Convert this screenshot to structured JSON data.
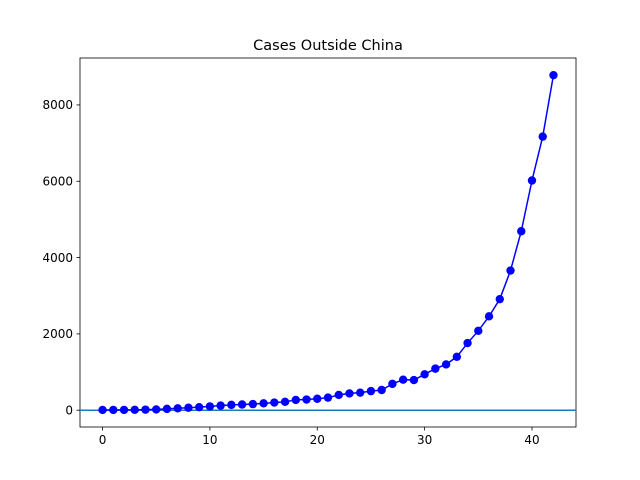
{
  "chart_data": {
    "type": "line",
    "title": "Cases Outside China",
    "xlabel": "",
    "ylabel": "",
    "xlim": [
      -2.1,
      44.1
    ],
    "ylim": [
      -440,
      9230
    ],
    "x_ticks": [
      0,
      10,
      20,
      30,
      40
    ],
    "y_ticks": [
      0,
      2000,
      4000,
      6000,
      8000
    ],
    "grid": false,
    "legend": "none",
    "series": [
      {
        "color": "#0000ff",
        "marker": "circle",
        "x": [
          0,
          1,
          2,
          3,
          4,
          5,
          6,
          7,
          8,
          9,
          10,
          11,
          12,
          13,
          14,
          15,
          16,
          17,
          18,
          19,
          20,
          21,
          22,
          23,
          24,
          25,
          26,
          27,
          28,
          29,
          30,
          31,
          32,
          33,
          34,
          35,
          36,
          37,
          38,
          39,
          40,
          41,
          42
        ],
        "values": [
          7,
          8,
          8,
          10,
          15,
          21,
          35,
          50,
          65,
          80,
          100,
          120,
          140,
          150,
          160,
          180,
          200,
          220,
          270,
          280,
          300,
          330,
          400,
          440,
          460,
          500,
          530,
          690,
          800,
          790,
          940,
          1090,
          1200,
          1400,
          1760,
          2080,
          2460,
          2910,
          3660,
          4690,
          6020,
          7170,
          8780
        ]
      }
    ],
    "reference_line": {
      "y": 0,
      "color": "#1f77b4"
    }
  }
}
